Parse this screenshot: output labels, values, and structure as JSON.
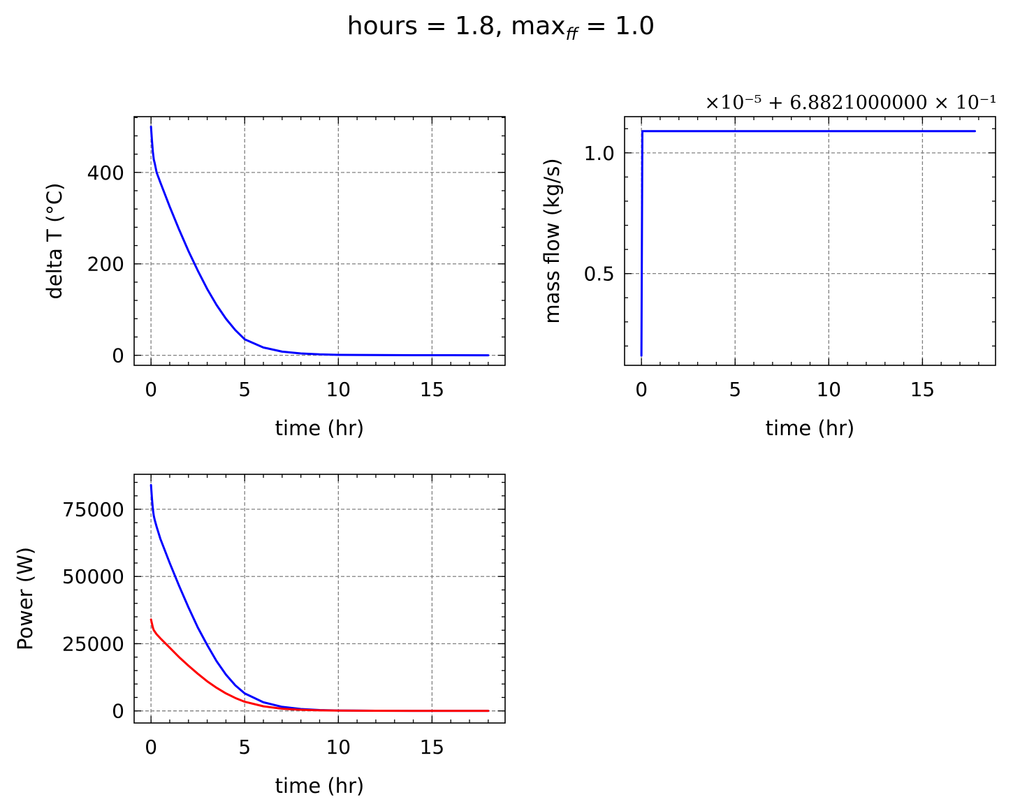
{
  "figure": {
    "title_main": "hours = 1.8, max",
    "title_sub": "ff",
    "title_tail": " = 1.0"
  },
  "chart_data": [
    {
      "type": "line",
      "id": "delta-t",
      "xlabel": "time (hr)",
      "ylabel": "delta T (°C)",
      "xlim": [
        -0.9,
        18.9
      ],
      "ylim": [
        -22,
        522
      ],
      "xticks": [
        0,
        5,
        10,
        15
      ],
      "xtick_labels": [
        "0",
        "5",
        "10",
        "15"
      ],
      "yticks": [
        0,
        200,
        400
      ],
      "ytick_labels": [
        "0",
        "200",
        "400"
      ],
      "grid": true,
      "series": [
        {
          "color": "#0000ff",
          "x": [
            0,
            0.05,
            0.1,
            0.15,
            0.2,
            0.3,
            0.5,
            1,
            1.5,
            2,
            2.5,
            3,
            3.5,
            4,
            4.5,
            5,
            6,
            7,
            8,
            9,
            10,
            12,
            14,
            16,
            18
          ],
          "y": [
            500,
            470,
            445,
            428,
            420,
            400,
            378,
            325,
            275,
            228,
            185,
            145,
            110,
            80,
            55,
            35,
            17,
            8,
            4,
            2,
            1,
            0.5,
            0.2,
            0.1,
            0
          ]
        }
      ]
    },
    {
      "type": "line",
      "id": "mass-flow",
      "xlabel": "time (hr)",
      "ylabel": "mass flow (kg/s)",
      "offset_text": "×10⁻⁵ + 6.8821000000 × 10⁻¹",
      "xlim": [
        -0.9,
        18.9
      ],
      "ylim": [
        0.12,
        1.15
      ],
      "xticks": [
        0,
        5,
        10,
        15
      ],
      "xtick_labels": [
        "0",
        "5",
        "10",
        "15"
      ],
      "yticks": [
        0.5,
        1.0
      ],
      "ytick_labels": [
        "0.5",
        "1.0"
      ],
      "grid": true,
      "series": [
        {
          "color": "#0000ff",
          "x": [
            0,
            0.05,
            0.1,
            17.8
          ],
          "y": [
            0.16,
            1.09,
            1.09,
            1.09
          ]
        }
      ]
    },
    {
      "type": "line",
      "id": "power",
      "xlabel": "time (hr)",
      "ylabel": "Power (W)",
      "xlim": [
        -0.9,
        18.9
      ],
      "ylim": [
        -4500,
        88000
      ],
      "xticks": [
        0,
        5,
        10,
        15
      ],
      "xtick_labels": [
        "0",
        "5",
        "10",
        "15"
      ],
      "yticks": [
        0,
        25000,
        50000,
        75000
      ],
      "ytick_labels": [
        "0",
        "25000",
        "50000",
        "75000"
      ],
      "grid": true,
      "series": [
        {
          "color": "#0000ff",
          "x": [
            0,
            0.05,
            0.1,
            0.15,
            0.2,
            0.3,
            0.5,
            1,
            1.5,
            2,
            2.5,
            3,
            3.5,
            4,
            4.5,
            5,
            6,
            7,
            8,
            9,
            10,
            12,
            14,
            16,
            18
          ],
          "y": [
            84000,
            79000,
            75000,
            72500,
            71000,
            68500,
            64000,
            55000,
            46500,
            38500,
            31000,
            24500,
            18500,
            13500,
            9500,
            6500,
            3200,
            1500,
            700,
            300,
            150,
            50,
            20,
            10,
            0
          ]
        },
        {
          "color": "#ff0000",
          "x": [
            0,
            0.05,
            0.1,
            0.15,
            0.2,
            0.3,
            0.5,
            1,
            1.5,
            2,
            2.5,
            3,
            3.5,
            4,
            4.5,
            5,
            6,
            7,
            8,
            9,
            10,
            12,
            14,
            16,
            18
          ],
          "y": [
            34000,
            32500,
            31000,
            30000,
            29500,
            28500,
            27000,
            23500,
            20000,
            16800,
            13800,
            11000,
            8600,
            6500,
            4800,
            3400,
            1700,
            800,
            400,
            200,
            100,
            40,
            15,
            5,
            0
          ]
        }
      ]
    }
  ]
}
